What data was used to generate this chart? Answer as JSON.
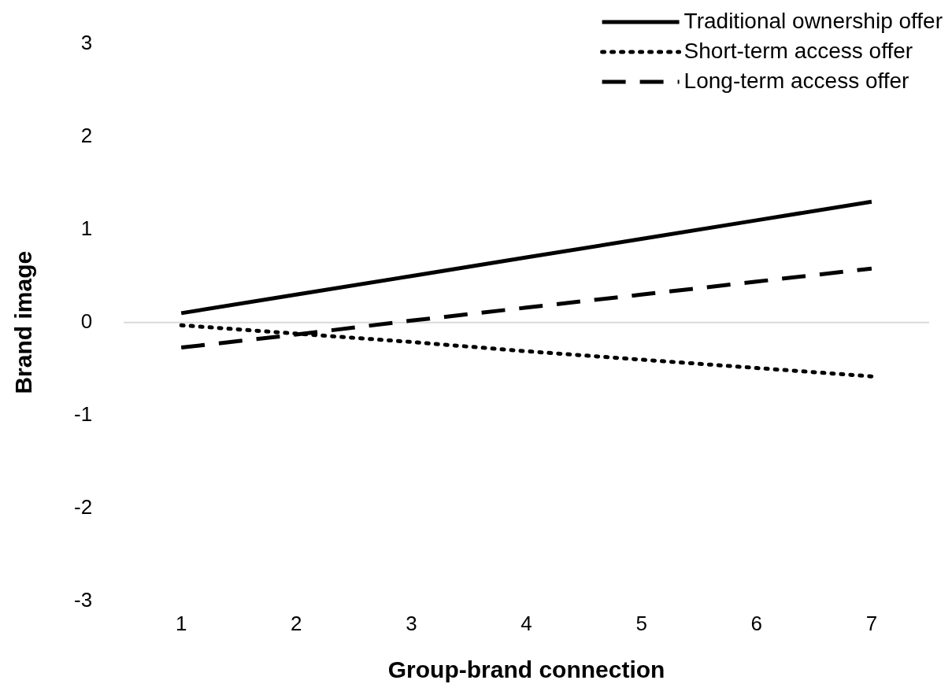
{
  "chart_data": {
    "type": "line",
    "xlabel": "Group-brand connection",
    "ylabel": "Brand image",
    "categories": [
      "1",
      "2",
      "3",
      "4",
      "5",
      "6",
      "7"
    ],
    "series": [
      {
        "name": "Traditional ownership offer",
        "color": "#000000",
        "line_style": "solid",
        "values": [
          0.1,
          0.3,
          0.5,
          0.7,
          0.9,
          1.1,
          1.3
        ]
      },
      {
        "name": "Short-term access offer",
        "color": "#000000",
        "line_style": "dotted",
        "values": [
          -0.03,
          -0.12,
          -0.21,
          -0.31,
          -0.4,
          -0.49,
          -0.58
        ]
      },
      {
        "name": "Long-term access offer",
        "color": "#000000",
        "line_style": "dashed",
        "values": [
          -0.27,
          -0.13,
          0.02,
          0.16,
          0.3,
          0.44,
          0.58
        ]
      }
    ],
    "ylim": [
      -3,
      3
    ],
    "yticks": [
      -3,
      -2,
      -1,
      0,
      1,
      2,
      3
    ],
    "ref_lines": [
      {
        "axis": "y",
        "value": 0,
        "color": "#d9d9d9"
      }
    ],
    "grid": false,
    "legend": "top right",
    "marker": "none"
  }
}
